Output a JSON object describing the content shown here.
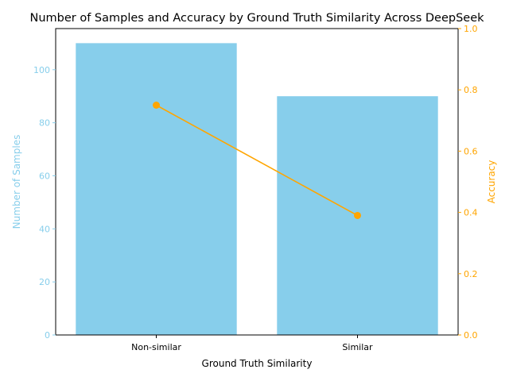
{
  "chart_data": {
    "type": "bar+line",
    "title": "Number of Samples and Accuracy by Ground Truth Similarity Across DeepSeek",
    "xlabel": "Ground Truth Similarity",
    "categories": [
      "Non-similar",
      "Similar"
    ],
    "bar_series": {
      "values": [
        110,
        90
      ],
      "color": "#87ceeb",
      "axis_label": "Number of Samples",
      "ylim": [
        0,
        115.5
      ],
      "ticks": [
        0,
        20,
        40,
        60,
        80,
        100
      ]
    },
    "line_series": {
      "values": [
        0.75,
        0.39
      ],
      "color": "#ffa500",
      "axis_label": "Accuracy",
      "ylim": [
        0,
        1.0
      ],
      "ticks": [
        0.0,
        0.2,
        0.4,
        0.6,
        0.8,
        1.0
      ]
    },
    "grid": false
  }
}
